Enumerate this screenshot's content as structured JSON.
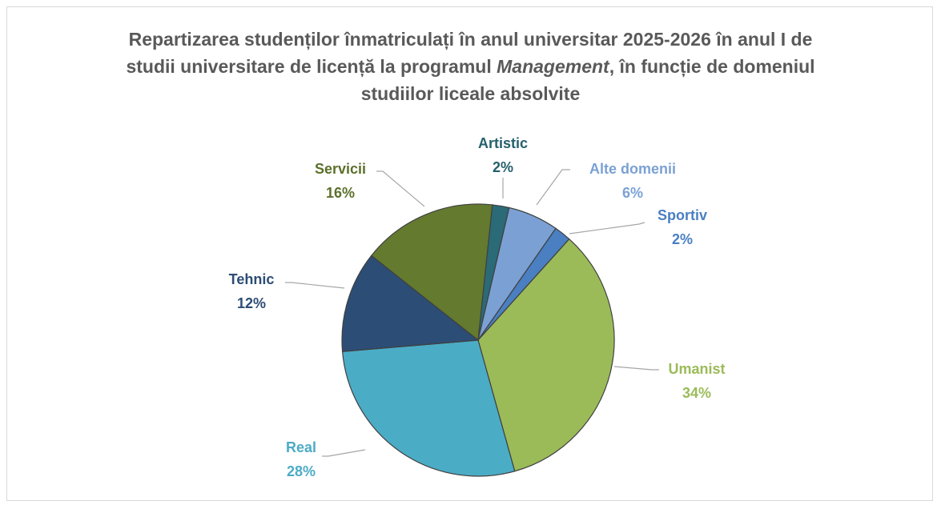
{
  "chart_data": {
    "type": "pie",
    "title": [
      "Repartizarea studenților înmatriculați în anul universitar 2025-2026 în anul I de studii universitare de licență la programul ",
      "Management",
      ", în funcție de domeniul studiilor liceale absolvite"
    ],
    "categories": [
      "Artistic",
      "Alte domenii",
      "Sportiv",
      "Umanist",
      "Real",
      "Tehnic",
      "Servicii"
    ],
    "values": [
      2,
      6,
      2,
      34,
      28,
      12,
      16
    ],
    "value_labels": [
      "2%",
      "6%",
      "2%",
      "34%",
      "28%",
      "12%",
      "16%"
    ],
    "colors": [
      "#2b6a77",
      "#7ba1d4",
      "#4a7fc2",
      "#9bbb59",
      "#4bacc6",
      "#2c4d75",
      "#637a2f"
    ],
    "label_colors": [
      "#24606c",
      "#7ba1d4",
      "#4a7fc2",
      "#9bbb59",
      "#4bacc6",
      "#2c4d75",
      "#5b702b"
    ]
  }
}
